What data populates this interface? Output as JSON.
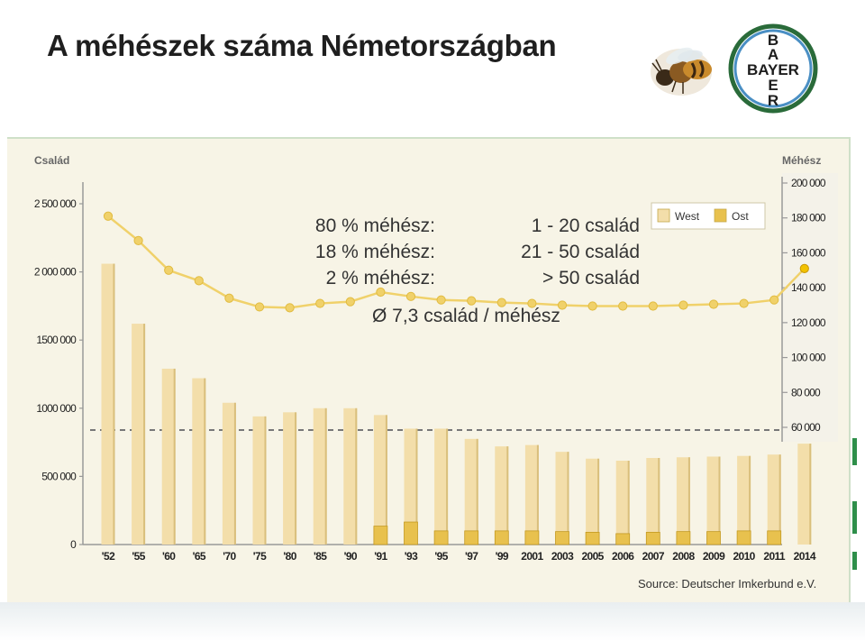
{
  "title": "A méhészek száma Németországban",
  "left_axis_title": "Család",
  "right_axis_title": "Méhész",
  "overlay": {
    "line1_left": "80 % méhész:",
    "line1_right": "1 - 20 család",
    "line2_left": "18 % méhész:",
    "line2_right": "21 - 50 család",
    "line3_left": "2 % méhész:",
    "line3_right": "> 50 család",
    "average": "Ø 7,3 család / méhész"
  },
  "source": "Source: Deutscher Imkerbund e.V.",
  "logo": {
    "text_b1": "B",
    "text_a": "A",
    "text_y": "Y",
    "text_e": "E",
    "text_r": "R",
    "text_bayer": "BAYER"
  },
  "colors": {
    "west": "#f3deaa",
    "ost": "#e8c14e",
    "line": "#f0d16a",
    "panel": "#f7f4e6"
  },
  "chart_data": {
    "type": "bar",
    "categories": [
      "'52",
      "'55",
      "'60",
      "'65",
      "'70",
      "'75",
      "'80",
      "'85",
      "'90",
      "'91",
      "'93",
      "'95",
      "'97",
      "'99",
      "2001",
      "2003",
      "2005",
      "2006",
      "2007",
      "2008",
      "2009",
      "2010",
      "2011",
      "2014"
    ],
    "series": [
      {
        "name": "West",
        "values": [
          2060000,
          1620000,
          1290000,
          1220000,
          1040000,
          940000,
          970000,
          1000000,
          1000000,
          950000,
          850000,
          850000,
          775000,
          720000,
          730000,
          680000,
          630000,
          615000,
          635000,
          640000,
          645000,
          650000,
          660000,
          740000
        ]
      },
      {
        "name": "Ost",
        "values": [
          null,
          null,
          null,
          null,
          null,
          null,
          null,
          null,
          null,
          135000,
          165000,
          100000,
          100000,
          100000,
          100000,
          95000,
          90000,
          80000,
          90000,
          95000,
          95000,
          100000,
          100000,
          null
        ]
      }
    ],
    "line_series": {
      "name": "Méhész",
      "axis": "right",
      "values": [
        181000,
        167000,
        150000,
        144000,
        134000,
        129000,
        128500,
        131000,
        132000,
        137500,
        135000,
        133000,
        132500,
        131500,
        131000,
        130000,
        129500,
        129500,
        129500,
        130000,
        130500,
        131000,
        133000,
        151000
      ]
    },
    "legend": [
      "West",
      "Ost"
    ],
    "legend_position": "top-right",
    "left_axis": {
      "ticks": [
        "0",
        "500 000",
        "1000 000",
        "1500 000",
        "2 000 000",
        "2 500 000"
      ],
      "values": [
        0,
        500000,
        1000000,
        1500000,
        2000000,
        2500000
      ],
      "ylim": [
        0,
        2500000
      ]
    },
    "right_axis": {
      "ticks": [
        "60 000",
        "80 000",
        "100 000",
        "120 000",
        "140 000",
        "160 000",
        "180 000",
        "200 000"
      ],
      "values": [
        60000,
        80000,
        100000,
        120000,
        140000,
        160000,
        180000,
        200000
      ],
      "ylim": [
        60000,
        200000
      ]
    },
    "reference_line_value": 840000
  }
}
